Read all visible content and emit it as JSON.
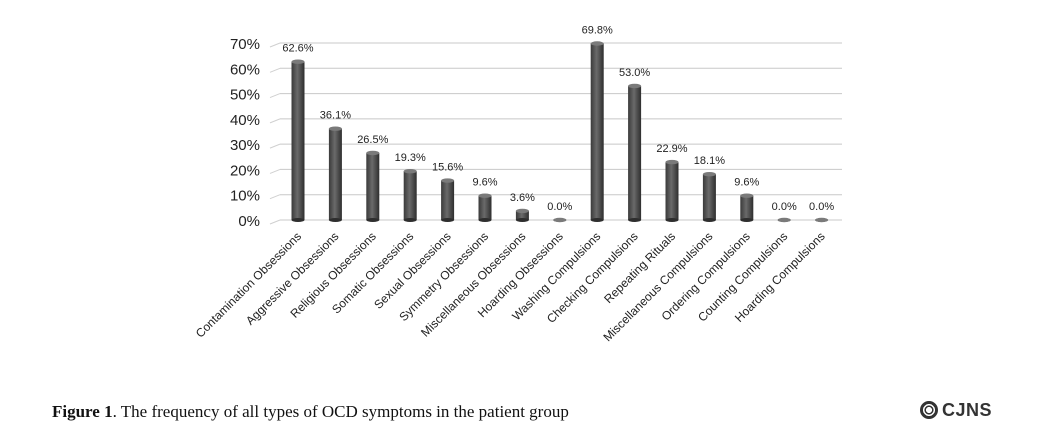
{
  "chart_data": {
    "type": "bar",
    "categories": [
      "Contamination Obsessions",
      "Aggressive Obsessions",
      "Religious Obsessions",
      "Somatic Obsessions",
      "Sexual Obsessions",
      "Symmetry Obsessions",
      "Miscellaneous Obsessions",
      "Hoarding Obsessions",
      "Washing Compulsions",
      "Checking Compulsions",
      "Repeating Rituals",
      "Miscellaneous Compulsions",
      "Ordering Compulsions",
      "Counting Compulsions",
      "Hoarding Compulsions"
    ],
    "values": [
      62.6,
      36.1,
      26.5,
      19.3,
      15.6,
      9.6,
      3.6,
      0.0,
      69.8,
      53.0,
      22.9,
      18.1,
      9.6,
      0.0,
      0.0
    ],
    "value_labels": [
      "62.6%",
      "36.1%",
      "26.5%",
      "19.3%",
      "15.6%",
      "9.6%",
      "3.6%",
      "0.0%",
      "69.8%",
      "53.0%",
      "22.9%",
      "18.1%",
      "9.6%",
      "0.0%",
      "0.0%"
    ],
    "y_ticks": [
      "0%",
      "10%",
      "20%",
      "30%",
      "40%",
      "50%",
      "60%",
      "70%"
    ],
    "ylim": [
      0,
      70
    ],
    "grid": true,
    "bar_color": "#555555"
  },
  "caption": {
    "label": "Figure 1",
    "text": ". The frequency of all types of OCD symptoms in the patient group"
  },
  "logo": {
    "text": "CJNS",
    "icon": "cjns-logo-icon"
  }
}
